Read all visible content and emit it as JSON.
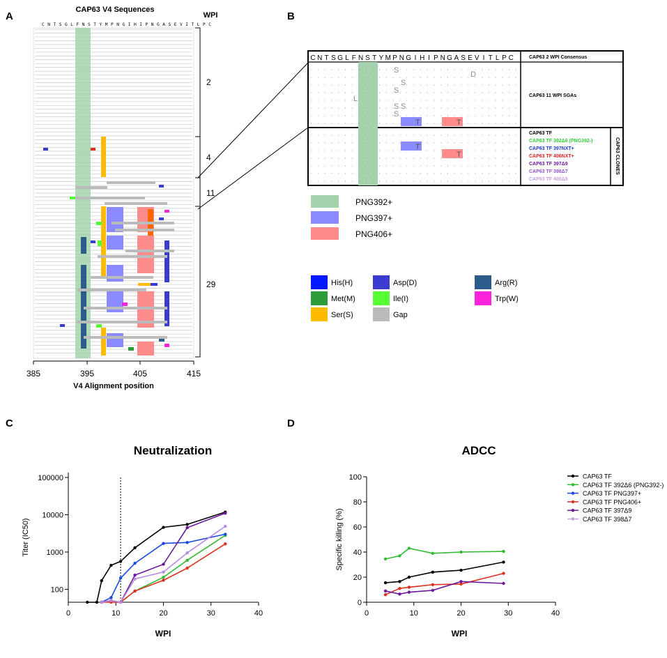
{
  "panels": {
    "a": "A",
    "b": "B",
    "c": "C",
    "d": "D"
  },
  "panel_a": {
    "title": "CAP63 V4 Sequences",
    "wpi_header": "WPI",
    "sequence_header": "C N T S G L F N S T Y M P N G I H I P N G A S E V I T L P C",
    "xlabel": "V4 Alignment position",
    "x_ticks": [
      "385",
      "395",
      "405",
      "415"
    ],
    "wpi_groups": [
      "2",
      "4",
      "11",
      "29"
    ]
  },
  "panel_b": {
    "sequence_letters": [
      "C",
      "N",
      "T",
      "S",
      "G",
      "L",
      "F",
      "N",
      "S",
      "T",
      "Y",
      "M",
      "P",
      "N",
      "G",
      "I",
      "H",
      "I",
      "P",
      "N",
      "G",
      "A",
      "S",
      "E",
      "V",
      "I",
      "T",
      "L",
      "P",
      "C"
    ],
    "consensus_label": "CAP63 2 WPI Consensus",
    "sga_label": "CAP63 11 WPI SGAs",
    "clones_side_label": "CAP63 CLONES",
    "clones": [
      {
        "label": "CAP63 TF",
        "color": "#000000"
      },
      {
        "label": "CAP63 TF 392Δ6 (PNG392-)",
        "color": "#33cc33"
      },
      {
        "label": "CAP63 TF 397NXT+",
        "color": "#1a3acc"
      },
      {
        "label": "CAP63 TF 406NXT+",
        "color": "#dd2222"
      },
      {
        "label": "CAP63 TF 397Δ9",
        "color": "#6a1a9a"
      },
      {
        "label": "CAP63 TF 398Δ7",
        "color": "#9955cc"
      },
      {
        "label": "CAP63 TF 400Δ5",
        "color": "#c9a0e0"
      }
    ],
    "sga_marks": [
      "S",
      "D",
      "S",
      "L",
      "S",
      "S",
      "S",
      "S",
      "T",
      "T"
    ],
    "clone_marks": [
      "T",
      "T"
    ]
  },
  "png_legend": [
    {
      "label": "PNG392+",
      "color": "#a3d3ae"
    },
    {
      "label": "PNG397+",
      "color": "#8b8bff"
    },
    {
      "label": "PNG406+",
      "color": "#ff8c8c"
    }
  ],
  "residue_legend": [
    {
      "label": "His(H)",
      "color": "#0019ff"
    },
    {
      "label": "Asp(D)",
      "color": "#3b3bcf"
    },
    {
      "label": "Arg(R)",
      "color": "#2b5c8a"
    },
    {
      "label": "Met(M)",
      "color": "#2e9b3a"
    },
    {
      "label": "Ile(I)",
      "color": "#55ff33"
    },
    {
      "label": "Trp(W)",
      "color": "#ff22dd"
    },
    {
      "label": "Ser(S)",
      "color": "#ffbb00"
    },
    {
      "label": "Gap",
      "color": "#bbbbbb"
    }
  ],
  "chart_data": [
    {
      "type": "line",
      "panel": "C",
      "title": "Neutralization",
      "xlabel": "WPI",
      "ylabel": "Titer (IC50)",
      "xlim": [
        0,
        40
      ],
      "ylim": [
        45,
        100000
      ],
      "yscale": "log",
      "x_ticks": [
        0,
        10,
        20,
        30,
        40
      ],
      "y_ticks": [
        100,
        1000,
        10000,
        100000
      ],
      "y_tick_labels": [
        "100",
        "1000",
        "10000",
        "100000"
      ],
      "vline_x": 11,
      "series": [
        {
          "name": "CAP63 TF",
          "color": "#000000",
          "x": [
            4,
            6,
            7,
            9,
            11,
            14,
            20,
            25,
            33
          ],
          "y": [
            45,
            45,
            170,
            440,
            560,
            1300,
            4600,
            5500,
            11800
          ]
        },
        {
          "name": "CAP63 TF 392Δ6 (PNG392-)",
          "color": "#33bb33",
          "x": [
            7,
            9,
            11,
            14,
            20,
            25,
            33
          ],
          "y": [
            45,
            50,
            45,
            90,
            210,
            600,
            2800
          ]
        },
        {
          "name": "CAP63 TF PNG397+",
          "color": "#1a4ae0",
          "x": [
            7,
            9,
            11,
            14,
            20,
            25,
            33
          ],
          "y": [
            45,
            60,
            200,
            500,
            1700,
            1800,
            3000
          ]
        },
        {
          "name": "CAP63 TF PNG406+",
          "color": "#e03020",
          "x": [
            7,
            9,
            11,
            14,
            20,
            25,
            33
          ],
          "y": [
            45,
            45,
            45,
            90,
            175,
            370,
            1650
          ]
        },
        {
          "name": "CAP63 TF 397Δ9",
          "color": "#6a1a9a",
          "x": [
            7,
            9,
            11,
            14,
            20,
            25,
            33
          ],
          "y": [
            45,
            50,
            45,
            240,
            470,
            4500,
            11000
          ]
        },
        {
          "name": "CAP63 TF 398Δ7",
          "color": "#b88ae0",
          "x": [
            7,
            9,
            11,
            14,
            20,
            25,
            33
          ],
          "y": [
            45,
            50,
            45,
            190,
            290,
            950,
            4900
          ]
        }
      ]
    },
    {
      "type": "line",
      "panel": "D",
      "title": "ADCC",
      "xlabel": "WPI",
      "ylabel": "Specific killing (%)",
      "xlim": [
        0,
        40
      ],
      "ylim": [
        0,
        100
      ],
      "x_ticks": [
        0,
        10,
        20,
        30,
        40
      ],
      "y_ticks": [
        0,
        20,
        40,
        60,
        80,
        100
      ],
      "legend_position": "top-right",
      "series": [
        {
          "name": "CAP63 TF",
          "color": "#000000",
          "x": [
            4,
            7,
            9,
            14,
            20,
            29
          ],
          "y": [
            15.5,
            16.5,
            20,
            24,
            25.5,
            32
          ]
        },
        {
          "name": "CAP63 TF 392Δ6 (PNG392-)",
          "color": "#33bb33",
          "x": [
            4,
            7,
            9,
            14,
            20,
            29
          ],
          "y": [
            34.5,
            37,
            43,
            39,
            40,
            40.5
          ]
        },
        {
          "name": "CAP63 TF PNG397+",
          "color": "#1a4ae0",
          "x": [],
          "y": []
        },
        {
          "name": "CAP63 TF PNG406+",
          "color": "#e03020",
          "x": [
            4,
            7,
            9,
            14,
            20,
            29
          ],
          "y": [
            6,
            11,
            12,
            14,
            14.5,
            23
          ]
        },
        {
          "name": "CAP63 TF 397Δ9",
          "color": "#6a1a9a",
          "x": [
            4,
            7,
            9,
            14,
            20,
            29
          ],
          "y": [
            9,
            6.5,
            8,
            9.5,
            16.5,
            15
          ]
        },
        {
          "name": "CAP63 TF 398Δ7",
          "color": "#c9a0e0",
          "x": [],
          "y": []
        }
      ]
    }
  ]
}
